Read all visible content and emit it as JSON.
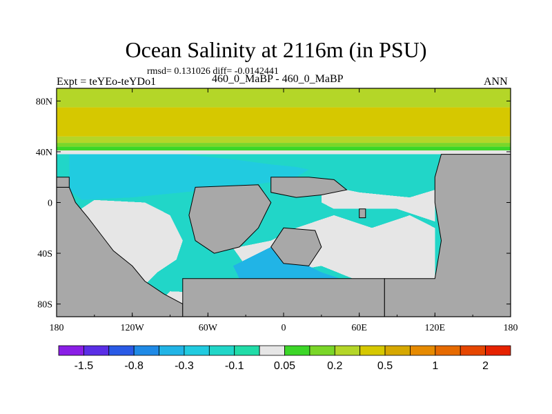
{
  "chart_data": {
    "type": "heatmap",
    "title": "Ocean Salinity at 2116m (in PSU)",
    "stats_line": "rmsd= 0.131026 diff= -0.0142441",
    "left_label": "Expt = teYEo-teYDo1",
    "center_label": "460_0_MaBP - 460_0_MaBP",
    "right_label": "ANN",
    "xlim": [
      -180,
      180
    ],
    "ylim": [
      -90,
      90
    ],
    "x_ticks": [
      {
        "value": -180,
        "label": "180"
      },
      {
        "value": -120,
        "label": "120W"
      },
      {
        "value": -60,
        "label": "60W"
      },
      {
        "value": 0,
        "label": "0"
      },
      {
        "value": 60,
        "label": "60E"
      },
      {
        "value": 120,
        "label": "120E"
      },
      {
        "value": 180,
        "label": "180"
      }
    ],
    "y_ticks": [
      {
        "value": 80,
        "label": "80N"
      },
      {
        "value": 40,
        "label": "40N"
      },
      {
        "value": 0,
        "label": "0"
      },
      {
        "value": -40,
        "label": "40S"
      },
      {
        "value": -80,
        "label": "80S"
      }
    ],
    "colorbar": {
      "colors": [
        "#8a1ee6",
        "#5a2ee6",
        "#2a5ae6",
        "#1f8ae6",
        "#21b4e6",
        "#21cbe0",
        "#21d6c8",
        "#21dca8",
        "#e6e6e6",
        "#3cd628",
        "#7ad628",
        "#b4d628",
        "#d6c800",
        "#d6a800",
        "#e68a00",
        "#e66a00",
        "#e64600",
        "#e62200"
      ],
      "labels": [
        {
          "boundary": 1,
          "text": "-1.5"
        },
        {
          "boundary": 3,
          "text": "-0.8"
        },
        {
          "boundary": 5,
          "text": "-0.3"
        },
        {
          "boundary": 7,
          "text": "-0.1"
        },
        {
          "boundary": 9,
          "text": "0.05"
        },
        {
          "boundary": 11,
          "text": "0.2"
        },
        {
          "boundary": 13,
          "text": "0.5"
        },
        {
          "boundary": 15,
          "text": "1"
        },
        {
          "boundary": 17,
          "text": "2"
        }
      ]
    },
    "map_colors": {
      "land": "#a8a8a8",
      "near_zero": "#e6e6e6",
      "neg_small": "#21d6c8",
      "neg_mid": "#21cbe0",
      "neg_big": "#21b4e6",
      "pos_mid": "#b4d628",
      "pos_high": "#d6c800",
      "pos_low": "#7ad628",
      "pos_edge": "#3cd628"
    },
    "regions": {
      "polar_bands": [
        {
          "lat": [
            75,
            90
          ],
          "color": "pos_mid"
        },
        {
          "lat": [
            52,
            75
          ],
          "color": "pos_high"
        },
        {
          "lat": [
            47,
            52
          ],
          "color": "pos_mid"
        },
        {
          "lat": [
            44,
            47
          ],
          "color": "pos_low"
        },
        {
          "lat": [
            41,
            44
          ],
          "color": "pos_edge"
        },
        {
          "lat": [
            38,
            41
          ],
          "color": "near_zero"
        }
      ],
      "ocean_patches": [
        {
          "color": "neg_small",
          "lonlat": [
            [
              -180,
              38
            ],
            [
              180,
              38
            ],
            [
              180,
              -80
            ],
            [
              -180,
              -80
            ]
          ]
        },
        {
          "color": "neg_mid",
          "lonlat": [
            [
              -170,
              38
            ],
            [
              -80,
              38
            ],
            [
              -40,
              34
            ],
            [
              -10,
              30
            ],
            [
              10,
              28
            ],
            [
              20,
              26
            ],
            [
              10,
              20
            ],
            [
              -10,
              16
            ],
            [
              -40,
              12
            ],
            [
              -80,
              8
            ],
            [
              -120,
              4
            ],
            [
              -160,
              2
            ],
            [
              -170,
              10
            ]
          ]
        },
        {
          "color": "near_zero",
          "lonlat": [
            [
              -150,
              2
            ],
            [
              -110,
              0
            ],
            [
              -90,
              -10
            ],
            [
              -80,
              -30
            ],
            [
              -85,
              -45
            ],
            [
              -100,
              -55
            ],
            [
              -110,
              -65
            ],
            [
              -120,
              -62
            ],
            [
              -130,
              -50
            ],
            [
              -140,
              -40
            ],
            [
              -150,
              -28
            ],
            [
              -160,
              -18
            ],
            [
              -165,
              -8
            ]
          ]
        },
        {
          "color": "near_zero",
          "lonlat": [
            [
              -40,
              -36
            ],
            [
              -10,
              -30
            ],
            [
              10,
              -20
            ],
            [
              40,
              -10
            ],
            [
              70,
              -20
            ],
            [
              100,
              -10
            ],
            [
              120,
              -20
            ],
            [
              120,
              -60
            ],
            [
              60,
              -62
            ],
            [
              30,
              -50
            ],
            [
              0,
              -55
            ],
            [
              -30,
              -50
            ]
          ]
        },
        {
          "color": "near_zero",
          "lonlat": [
            [
              30,
              14
            ],
            [
              60,
              8
            ],
            [
              80,
              6
            ],
            [
              100,
              4
            ],
            [
              120,
              10
            ],
            [
              120,
              -15
            ],
            [
              90,
              -5
            ],
            [
              60,
              -5
            ],
            [
              40,
              -5
            ],
            [
              30,
              0
            ]
          ]
        },
        {
          "color": "neg_big",
          "lonlat": [
            [
              -10,
              -35
            ],
            [
              10,
              -45
            ],
            [
              30,
              -55
            ],
            [
              60,
              -65
            ],
            [
              50,
              -72
            ],
            [
              20,
              -70
            ],
            [
              -10,
              -65
            ],
            [
              -35,
              -60
            ],
            [
              -40,
              -50
            ]
          ]
        },
        {
          "color": "near_zero",
          "lonlat": [
            [
              -90,
              -70
            ],
            [
              -40,
              -72
            ],
            [
              0,
              -70
            ],
            [
              60,
              -70
            ],
            [
              100,
              -72
            ],
            [
              120,
              -80
            ],
            [
              -70,
              -82
            ],
            [
              -100,
              -80
            ]
          ]
        }
      ],
      "land": [
        {
          "lonlat": [
            [
              -180,
              12
            ],
            [
              -170,
              12
            ],
            [
              -165,
              0
            ],
            [
              -155,
              -12
            ],
            [
              -145,
              -25
            ],
            [
              -135,
              -38
            ],
            [
              -120,
              -50
            ],
            [
              -110,
              -62
            ],
            [
              -95,
              -72
            ],
            [
              -80,
              -80
            ],
            [
              -80,
              -90
            ],
            [
              -180,
              -90
            ]
          ]
        },
        {
          "lonlat": [
            [
              -180,
              20
            ],
            [
              -170,
              20
            ],
            [
              -170,
              12
            ],
            [
              -180,
              12
            ]
          ]
        },
        {
          "lonlat": [
            [
              -70,
              12
            ],
            [
              -20,
              14
            ],
            [
              -10,
              0
            ],
            [
              -20,
              -20
            ],
            [
              -35,
              -35
            ],
            [
              -55,
              -40
            ],
            [
              -70,
              -30
            ],
            [
              -75,
              -10
            ]
          ]
        },
        {
          "lonlat": [
            [
              -10,
              20
            ],
            [
              20,
              20
            ],
            [
              40,
              18
            ],
            [
              50,
              10
            ],
            [
              30,
              6
            ],
            [
              10,
              4
            ],
            [
              -10,
              8
            ]
          ]
        },
        {
          "lonlat": [
            [
              0,
              -20
            ],
            [
              25,
              -22
            ],
            [
              30,
              -35
            ],
            [
              20,
              -50
            ],
            [
              0,
              -48
            ],
            [
              -10,
              -35
            ]
          ]
        },
        {
          "lonlat": [
            [
              125,
              38
            ],
            [
              180,
              38
            ],
            [
              180,
              -90
            ],
            [
              80,
              -90
            ],
            [
              80,
              -60
            ],
            [
              120,
              -60
            ],
            [
              125,
              -30
            ],
            [
              120,
              0
            ],
            [
              120,
              20
            ]
          ]
        },
        {
          "lonlat": [
            [
              -80,
              -60
            ],
            [
              80,
              -60
            ],
            [
              80,
              -90
            ],
            [
              -80,
              -90
            ]
          ]
        },
        {
          "lonlat": [
            [
              60,
              -5
            ],
            [
              65,
              -5
            ],
            [
              65,
              -12
            ],
            [
              60,
              -12
            ]
          ]
        }
      ]
    }
  }
}
